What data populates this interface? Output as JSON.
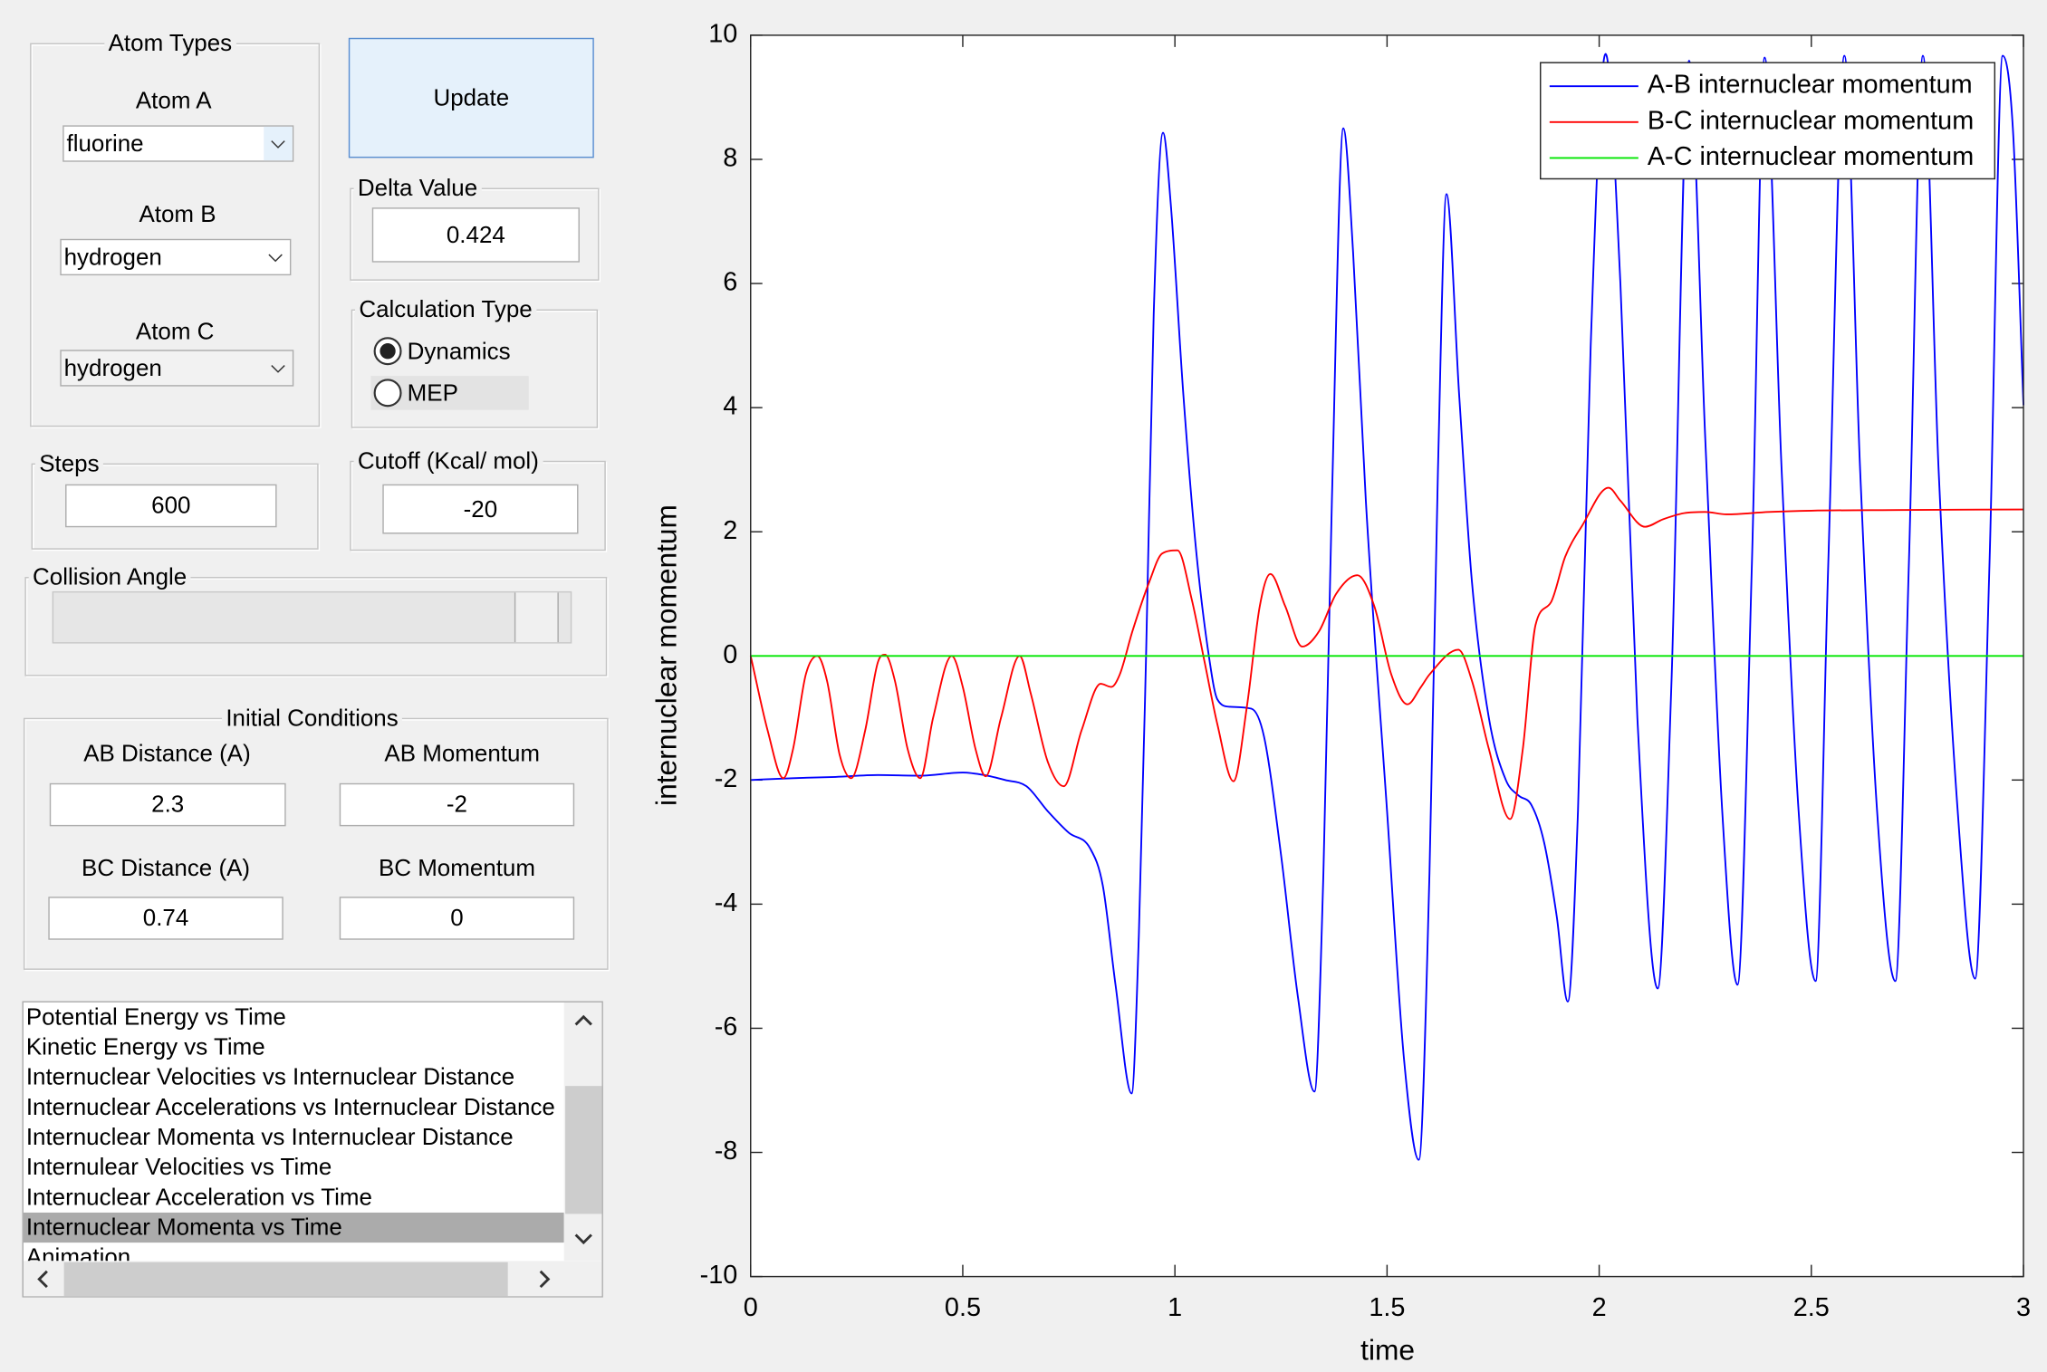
{
  "atom_types": {
    "title": "Atom Types",
    "atom_a": {
      "label": "Atom A",
      "value": "fluorine"
    },
    "atom_b": {
      "label": "Atom B",
      "value": "hydrogen"
    },
    "atom_c": {
      "label": "Atom C",
      "value": "hydrogen"
    }
  },
  "update_button": "Update",
  "delta_value": {
    "label": "Delta Value",
    "value": "0.424"
  },
  "calculation_type": {
    "label": "Calculation Type",
    "options": [
      "Dynamics",
      "MEP"
    ],
    "selected": 0
  },
  "steps": {
    "label": "Steps",
    "value": "600"
  },
  "cutoff": {
    "label": "Cutoff (Kcal/ mol)",
    "value": "-20"
  },
  "collision_angle": {
    "label": "Collision Angle"
  },
  "initial_conditions": {
    "title": "Initial Conditions",
    "ab_distance": {
      "label": "AB Distance (A)",
      "value": "2.3"
    },
    "ab_momentum": {
      "label": "AB Momentum",
      "value": "-2"
    },
    "bc_distance": {
      "label": "BC Distance (A)",
      "value": "0.74"
    },
    "bc_momentum": {
      "label": "BC Momentum",
      "value": "0"
    }
  },
  "plot_list": {
    "items": [
      "Potential Energy vs Time",
      "Kinetic Energy vs Time",
      "Internuclear Velocities vs Internuclear Distance",
      "Internuclear Accelerations vs Internuclear Distance",
      "Internuclear Momenta vs Internuclear Distance",
      "Internulear Velocities vs Time",
      "Internuclear Acceleration vs Time",
      "Internuclear Momenta vs Time",
      "Animation"
    ],
    "selected": 7
  },
  "chart_data": {
    "type": "line",
    "xlabel": "time",
    "ylabel": "internuclear momentum",
    "xlim": [
      0,
      3
    ],
    "xticks": [
      0,
      0.5,
      1,
      1.5,
      2,
      2.5,
      3
    ],
    "ylim": [
      -10,
      10
    ],
    "yticks": [
      -10,
      -8,
      -6,
      -4,
      -2,
      0,
      2,
      4,
      6,
      8,
      10
    ],
    "grid": false,
    "legend": "upper right",
    "series": [
      {
        "name": "A-B internuclear momentum",
        "color": "#0000ff",
        "x": [
          0,
          0.1,
          0.2,
          0.3,
          0.4,
          0.5,
          0.55,
          0.6,
          0.65,
          0.7,
          0.75,
          0.8,
          0.83,
          0.86,
          0.898,
          0.915,
          0.932,
          0.95,
          0.972,
          0.99,
          1.02,
          1.05,
          1.08,
          1.1,
          1.13,
          1.18,
          1.21,
          1.25,
          1.29,
          1.329,
          1.35,
          1.37,
          1.397,
          1.42,
          1.45,
          1.5,
          1.54,
          1.575,
          1.6,
          1.62,
          1.64,
          1.67,
          1.7,
          1.74,
          1.78,
          1.81,
          1.84,
          1.87,
          1.9,
          1.926,
          1.95,
          1.98,
          2.015,
          2.05,
          2.09,
          2.138,
          2.17,
          2.212,
          2.25,
          2.29,
          2.326,
          2.36,
          2.39,
          2.43,
          2.47,
          2.51,
          2.54,
          2.578,
          2.615,
          2.655,
          2.698,
          2.73,
          2.763,
          2.8,
          2.845,
          2.886,
          2.92,
          2.951,
          2.975,
          3.0
        ],
        "values": [
          -2.0,
          -1.97,
          -1.95,
          -1.92,
          -1.93,
          -1.88,
          -1.92,
          -2.0,
          -2.1,
          -2.5,
          -2.85,
          -3.1,
          -3.7,
          -5.3,
          -7.05,
          -4.5,
          0,
          5.5,
          8.43,
          7.3,
          4.2,
          1.7,
          0.0,
          -0.7,
          -0.82,
          -0.85,
          -1.3,
          -3.2,
          -5.5,
          -7.02,
          -3.5,
          2.5,
          8.5,
          6.5,
          2.5,
          -2.5,
          -6.5,
          -8.12,
          -3.5,
          3,
          7.44,
          4.2,
          1.2,
          -1.0,
          -2.0,
          -2.25,
          -2.4,
          -3.0,
          -4.2,
          -5.57,
          -2.5,
          5,
          9.7,
          6,
          -1,
          -5.36,
          -0.5,
          9.59,
          3.5,
          -2.5,
          -5.3,
          1.5,
          9.64,
          3,
          -2.5,
          -5.24,
          1.5,
          9.67,
          3,
          -2.5,
          -5.24,
          1.5,
          9.67,
          3,
          -2.5,
          -5.2,
          1.5,
          9.67,
          8.5,
          4.04
        ]
      },
      {
        "name": "B-C internuclear momentum",
        "color": "#ff0000",
        "x": [
          0,
          0.04,
          0.077,
          0.1,
          0.13,
          0.157,
          0.18,
          0.21,
          0.237,
          0.27,
          0.3,
          0.317,
          0.34,
          0.37,
          0.4,
          0.43,
          0.474,
          0.5,
          0.53,
          0.554,
          0.59,
          0.634,
          0.66,
          0.7,
          0.738,
          0.78,
          0.825,
          0.85,
          0.87,
          0.9,
          0.94,
          0.97,
          1.006,
          1.04,
          1.07,
          1.1,
          1.138,
          1.17,
          1.2,
          1.225,
          1.26,
          1.3,
          1.34,
          1.38,
          1.43,
          1.47,
          1.51,
          1.548,
          1.58,
          1.6,
          1.668,
          1.7,
          1.74,
          1.79,
          1.82,
          1.85,
          1.886,
          1.92,
          1.96,
          2.022,
          2.05,
          2.108,
          2.15,
          2.2,
          2.25,
          2.3,
          2.4,
          2.5,
          2.7,
          3.0
        ],
        "values": [
          0,
          -1.2,
          -1.97,
          -1.5,
          -0.3,
          0,
          -0.4,
          -1.6,
          -1.97,
          -1.2,
          -0.1,
          0.02,
          -0.4,
          -1.5,
          -1.97,
          -1.0,
          0,
          -0.5,
          -1.5,
          -1.94,
          -1.0,
          0,
          -0.6,
          -1.7,
          -2.1,
          -1.2,
          -0.45,
          -0.5,
          -0.3,
          0.4,
          1.2,
          1.65,
          1.7,
          0.9,
          -0.1,
          -1.1,
          -2.02,
          -0.8,
          0.8,
          1.32,
          0.8,
          0.15,
          0.4,
          1.0,
          1.3,
          0.8,
          -0.3,
          -0.78,
          -0.5,
          -0.3,
          0.1,
          -0.4,
          -1.5,
          -2.63,
          -1.5,
          0.5,
          0.86,
          1.6,
          2.1,
          2.71,
          2.5,
          2.08,
          2.2,
          2.3,
          2.32,
          2.28,
          2.32,
          2.34,
          2.35,
          2.36
        ]
      },
      {
        "name": "A-C internuclear momentum",
        "color": "#00e600",
        "x": [
          0,
          3
        ],
        "values": [
          0,
          0
        ]
      }
    ]
  }
}
